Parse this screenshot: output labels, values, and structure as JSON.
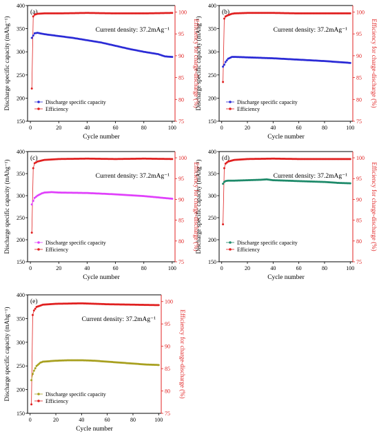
{
  "chart_data": [
    {
      "type": "scatter",
      "panel_label": "(a)",
      "xlabel": "Cycle number",
      "ylabel": "Discharge specific capacity (mAhg⁻¹)",
      "y2label": "Efficiency for charge-discharge (%)",
      "annotation": "Current density: 37.2mAg⁻¹",
      "xlim": [
        -2,
        102
      ],
      "ylim": [
        150,
        400
      ],
      "y2lim": [
        75,
        101.5
      ],
      "xticks": [
        0,
        20,
        40,
        60,
        80,
        100
      ],
      "yticks": [
        150,
        200,
        250,
        300,
        350,
        400
      ],
      "y2ticks": [
        75,
        80,
        85,
        90,
        95,
        100
      ],
      "capacity_color": "#2b2bd6",
      "efficiency_color": "#e02020",
      "legend_position": "lower-left",
      "series": [
        {
          "name": "Discharge specific capacity",
          "axis": "left",
          "x": [
            1,
            2,
            3,
            5,
            10,
            20,
            30,
            40,
            50,
            60,
            70,
            80,
            90,
            95,
            100
          ],
          "y": [
            330,
            335,
            340,
            341,
            338,
            334,
            330,
            325,
            320,
            313,
            306,
            300,
            295,
            290,
            289
          ]
        },
        {
          "name": "Efficiency",
          "axis": "right",
          "x": [
            1,
            2,
            3,
            5,
            10,
            20,
            40,
            60,
            80,
            100
          ],
          "y": [
            82.5,
            99.0,
            99.4,
            99.6,
            99.7,
            99.7,
            99.8,
            99.7,
            99.7,
            99.8
          ]
        }
      ]
    },
    {
      "type": "scatter",
      "panel_label": "(b)",
      "xlabel": "Cycle number",
      "ylabel": "Discharge specific capacity (mAhg⁻¹)",
      "y2label": "Efficiency for charge-discharge (%)",
      "annotation": "Current density: 37.2mAg⁻¹",
      "xlim": [
        -2,
        102
      ],
      "ylim": [
        150,
        400
      ],
      "y2lim": [
        75,
        101.5
      ],
      "xticks": [
        0,
        20,
        40,
        60,
        80,
        100
      ],
      "yticks": [
        150,
        200,
        250,
        300,
        350,
        400
      ],
      "y2ticks": [
        75,
        80,
        85,
        90,
        95,
        100
      ],
      "capacity_color": "#2b2bd6",
      "efficiency_color": "#e02020",
      "legend_position": "lower-left",
      "series": [
        {
          "name": "Discharge specific capacity",
          "axis": "left",
          "x": [
            1,
            2,
            3,
            5,
            8,
            10,
            20,
            40,
            60,
            80,
            100
          ],
          "y": [
            268,
            272,
            278,
            285,
            289,
            289,
            288,
            286,
            283,
            280,
            276
          ]
        },
        {
          "name": "Efficiency",
          "axis": "right",
          "x": [
            1,
            2,
            3,
            5,
            8,
            10,
            20,
            40,
            60,
            80,
            100
          ],
          "y": [
            84,
            98.5,
            99.0,
            99.3,
            99.6,
            99.7,
            99.8,
            99.8,
            99.7,
            99.7,
            99.7
          ]
        }
      ]
    },
    {
      "type": "scatter",
      "panel_label": "(c)",
      "xlabel": "Cycle number",
      "ylabel": "Discharge specific capacity (mAhg⁻¹)",
      "y2label": "Efficiency for charge-discharge (%)",
      "annotation": "Current density: 37.2mAg⁻¹",
      "xlim": [
        -2,
        102
      ],
      "ylim": [
        150,
        400
      ],
      "y2lim": [
        75,
        101.5
      ],
      "xticks": [
        0,
        20,
        40,
        60,
        80,
        100
      ],
      "yticks": [
        150,
        200,
        250,
        300,
        350,
        400
      ],
      "y2ticks": [
        75,
        80,
        85,
        90,
        95,
        100
      ],
      "capacity_color": "#e040fb",
      "efficiency_color": "#e02020",
      "legend_position": "lower-left",
      "series": [
        {
          "name": "Discharge specific capacity",
          "axis": "left",
          "x": [
            1,
            2,
            3,
            5,
            8,
            10,
            15,
            20,
            40,
            60,
            80,
            100
          ],
          "y": [
            280,
            288,
            295,
            300,
            305,
            307,
            308,
            307,
            306,
            303,
            299,
            293
          ]
        },
        {
          "name": "Efficiency",
          "axis": "right",
          "x": [
            1,
            2,
            3,
            5,
            10,
            20,
            40,
            60,
            80,
            100
          ],
          "y": [
            82,
            97.5,
            98.7,
            99.1,
            99.5,
            99.7,
            99.8,
            99.7,
            99.8,
            99.7
          ]
        }
      ]
    },
    {
      "type": "scatter",
      "panel_label": "(d)",
      "xlabel": "Cycle number",
      "ylabel": "Discharge specific capacity (mAhg⁻¹)",
      "y2label": "Efficiency for charge-discharge (%)",
      "annotation": "Current density: 37.2mAg⁻¹",
      "xlim": [
        -2,
        102
      ],
      "ylim": [
        150,
        400
      ],
      "y2lim": [
        75,
        101.5
      ],
      "xticks": [
        0,
        20,
        40,
        60,
        80,
        100
      ],
      "yticks": [
        150,
        200,
        250,
        300,
        350,
        400
      ],
      "y2ticks": [
        75,
        80,
        85,
        90,
        95,
        100
      ],
      "capacity_color": "#1e8a6a",
      "efficiency_color": "#e02020",
      "legend_position": "lower-left",
      "series": [
        {
          "name": "Discharge specific capacity",
          "axis": "left",
          "x": [
            1,
            2,
            3,
            5,
            10,
            20,
            30,
            35,
            40,
            60,
            80,
            90,
            100
          ],
          "y": [
            327,
            331,
            333,
            334,
            334,
            335,
            336,
            337,
            335,
            333,
            331,
            329,
            328
          ]
        },
        {
          "name": "Efficiency",
          "axis": "right",
          "x": [
            1,
            2,
            3,
            5,
            10,
            20,
            40,
            60,
            80,
            100
          ],
          "y": [
            84,
            97.5,
            98.6,
            99.1,
            99.5,
            99.7,
            99.8,
            99.7,
            99.7,
            99.7
          ]
        }
      ]
    },
    {
      "type": "scatter",
      "panel_label": "(e)",
      "xlabel": "Cycle number",
      "ylabel": "Discharge specific capacity (mAhg⁻¹)",
      "y2label": "Efficiency for charge-discharge (%)",
      "annotation": "Current density: 37.2mAg⁻¹",
      "xlim": [
        -2,
        102
      ],
      "ylim": [
        150,
        400
      ],
      "y2lim": [
        75,
        101.5
      ],
      "xticks": [
        0,
        20,
        40,
        60,
        80,
        100
      ],
      "yticks": [
        150,
        200,
        250,
        300,
        350,
        400
      ],
      "y2ticks": [
        75,
        80,
        85,
        90,
        95,
        100
      ],
      "capacity_color": "#a8a020",
      "efficiency_color": "#e02020",
      "legend_position": "lower-left",
      "series": [
        {
          "name": "Discharge specific capacity",
          "axis": "left",
          "x": [
            1,
            2,
            3,
            5,
            8,
            10,
            20,
            30,
            40,
            50,
            60,
            70,
            80,
            90,
            100
          ],
          "y": [
            220,
            233,
            240,
            250,
            257,
            259,
            261,
            262,
            262,
            261,
            259,
            257,
            255,
            253,
            252
          ]
        },
        {
          "name": "Efficiency",
          "axis": "right",
          "x": [
            1,
            2,
            3,
            5,
            10,
            20,
            40,
            60,
            80,
            100
          ],
          "y": [
            77,
            97.0,
            98.0,
            98.8,
            99.3,
            99.5,
            99.6,
            99.4,
            99.3,
            99.2
          ]
        }
      ]
    }
  ]
}
